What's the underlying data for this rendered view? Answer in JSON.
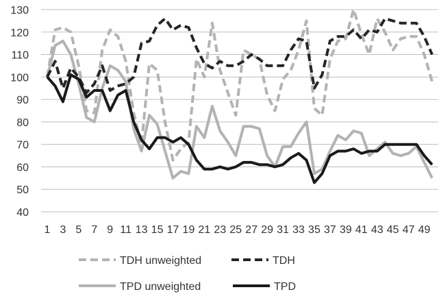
{
  "chart_data": {
    "type": "line",
    "title": "",
    "xlabel": "",
    "ylabel": "",
    "ylim": [
      40,
      130
    ],
    "yticks": [
      40,
      50,
      60,
      70,
      80,
      90,
      100,
      110,
      120,
      130
    ],
    "x": [
      1,
      2,
      3,
      4,
      5,
      6,
      7,
      8,
      9,
      10,
      11,
      12,
      13,
      14,
      15,
      16,
      17,
      18,
      19,
      20,
      21,
      22,
      23,
      24,
      25,
      26,
      27,
      28,
      29,
      30,
      31,
      32,
      33,
      34,
      35,
      36,
      37,
      38,
      39,
      40,
      41,
      42,
      43,
      44,
      45,
      46,
      47,
      48,
      49,
      50
    ],
    "xtick_labels": [
      "1",
      "3",
      "5",
      "7",
      "9",
      "11",
      "13",
      "15",
      "17",
      "19",
      "21",
      "23",
      "25",
      "27",
      "29",
      "31",
      "33",
      "35",
      "37",
      "39",
      "41",
      "43",
      "45",
      "47",
      "49"
    ],
    "grid": true,
    "legend_position": "bottom",
    "series": [
      {
        "name": "TDH  unweighted",
        "color": "#b3b3b3",
        "dash": "dashed",
        "values": [
          100,
          121,
          122,
          120,
          105,
          85,
          84,
          112,
          121,
          118,
          107,
          84,
          70,
          106,
          103,
          80,
          63,
          68,
          71,
          108,
          100,
          124,
          103,
          93,
          83,
          112,
          110,
          108,
          92,
          85,
          99,
          103,
          112,
          125,
          86,
          83,
          108,
          116,
          117,
          130,
          119,
          110,
          126,
          120,
          112,
          117,
          118,
          118,
          110,
          98
        ]
      },
      {
        "name": "TDH",
        "color": "#262626",
        "dash": "dashed",
        "values": [
          100,
          107,
          95,
          104,
          100,
          93,
          97,
          105,
          94,
          96,
          97,
          100,
          115,
          116,
          123,
          126,
          121,
          123,
          122,
          113,
          106,
          104,
          107,
          105,
          105,
          107,
          110,
          108,
          105,
          105,
          105,
          112,
          117,
          116,
          95,
          101,
          116,
          118,
          118,
          121,
          117,
          121,
          120,
          126,
          125,
          124,
          124,
          124,
          118,
          110
        ]
      },
      {
        "name": "TPD unweighted",
        "color": "#b3b3b3",
        "dash": "solid",
        "values": [
          100,
          114,
          116,
          110,
          97,
          82,
          80,
          95,
          105,
          103,
          98,
          77,
          67,
          83,
          79,
          67,
          55,
          58,
          57,
          78,
          73,
          87,
          76,
          71,
          65,
          78,
          78,
          77,
          65,
          60,
          69,
          69,
          75,
          80,
          57,
          59,
          67,
          74,
          72,
          76,
          75,
          65,
          68,
          71,
          66,
          65,
          66,
          69,
          62,
          55
        ]
      },
      {
        "name": "TPD",
        "color": "#1a1a1a",
        "dash": "solid",
        "values": [
          100,
          96,
          89,
          101,
          99,
          91,
          94,
          94,
          85,
          92,
          94,
          80,
          72,
          68,
          73,
          73,
          71,
          73,
          70,
          63,
          59,
          59,
          60,
          59,
          60,
          62,
          62,
          61,
          61,
          60,
          61,
          64,
          66,
          63,
          53,
          57,
          65,
          67,
          67,
          68,
          66,
          67,
          67,
          70,
          70,
          70,
          70,
          70,
          65,
          61
        ]
      }
    ],
    "legend": {
      "row1": [
        "TDH  unweighted",
        "TDH"
      ],
      "row2": [
        "TPD unweighted",
        "TPD"
      ]
    }
  }
}
